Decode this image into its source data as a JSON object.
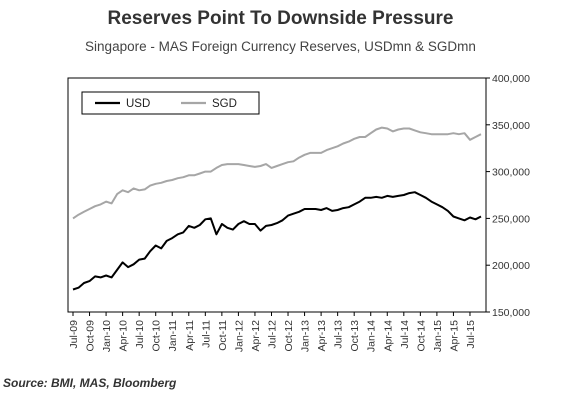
{
  "chart_data": {
    "type": "line",
    "title": "Reserves Point To Downside Pressure",
    "subtitle": "Singapore - MAS Foreign Currency Reserves, USDmn & SGDmn",
    "source": "Source: BMI, MAS, Bloomberg",
    "ylim": [
      150000,
      400000
    ],
    "yticks": [
      "150,000",
      "200,000",
      "250,000",
      "300,000",
      "350,000",
      "400,000"
    ],
    "ytick_values": [
      150000,
      200000,
      250000,
      300000,
      350000,
      400000
    ],
    "y_axis_side": "right",
    "x_tick_labels": [
      "Jul-09",
      "Oct-09",
      "Jan-10",
      "Apr-10",
      "Jul-10",
      "Oct-10",
      "Jan-11",
      "Apr-11",
      "Jul-11",
      "Oct-11",
      "Jan-12",
      "Apr-12",
      "Jul-12",
      "Oct-12",
      "Jan-13",
      "Apr-13",
      "Jul-13",
      "Oct-13",
      "Jan-14",
      "Apr-14",
      "Jul-14",
      "Oct-14",
      "Jan-15",
      "Apr-15",
      "Jul-15"
    ],
    "legend": {
      "placement": "top-left",
      "box": true
    },
    "series": [
      {
        "name": "USD",
        "color": "#000000",
        "values": [
          174000,
          176000,
          181000,
          183000,
          188000,
          187000,
          189000,
          187000,
          195000,
          203000,
          198000,
          201000,
          206000,
          207000,
          215000,
          221000,
          218000,
          226000,
          229000,
          233000,
          235000,
          242000,
          240000,
          243000,
          249000,
          250000,
          233000,
          244000,
          240000,
          238000,
          244000,
          247000,
          244000,
          244000,
          237000,
          242000,
          243000,
          245000,
          248000,
          253000,
          255000,
          257000,
          260000,
          260000,
          260000,
          259000,
          261000,
          258000,
          259000,
          261000,
          262000,
          265000,
          268000,
          272000,
          272000,
          273000,
          272000,
          274000,
          273000,
          274000,
          275000,
          277000,
          278000,
          275000,
          272000,
          268000,
          265000,
          262000,
          258000,
          252000,
          250000,
          248000,
          251000,
          249000,
          252000
        ]
      },
      {
        "name": "SGD",
        "color": "#a6a6a6",
        "values": [
          250000,
          254000,
          257000,
          260000,
          263000,
          265000,
          268000,
          266000,
          276000,
          280000,
          278000,
          282000,
          280000,
          281000,
          285000,
          287000,
          288000,
          290000,
          291000,
          293000,
          294000,
          296000,
          296000,
          298000,
          300000,
          300000,
          304000,
          307000,
          308000,
          308000,
          308000,
          307000,
          306000,
          305000,
          306000,
          308000,
          304000,
          306000,
          308000,
          310000,
          311000,
          315000,
          318000,
          320000,
          320000,
          320000,
          323000,
          325000,
          327000,
          330000,
          332000,
          335000,
          337000,
          337000,
          341000,
          345000,
          347000,
          346000,
          343000,
          345000,
          346000,
          346000,
          344000,
          342000,
          341000,
          340000,
          340000,
          340000,
          340000,
          341000,
          340000,
          341000,
          334000,
          337000,
          340000
        ]
      }
    ]
  }
}
